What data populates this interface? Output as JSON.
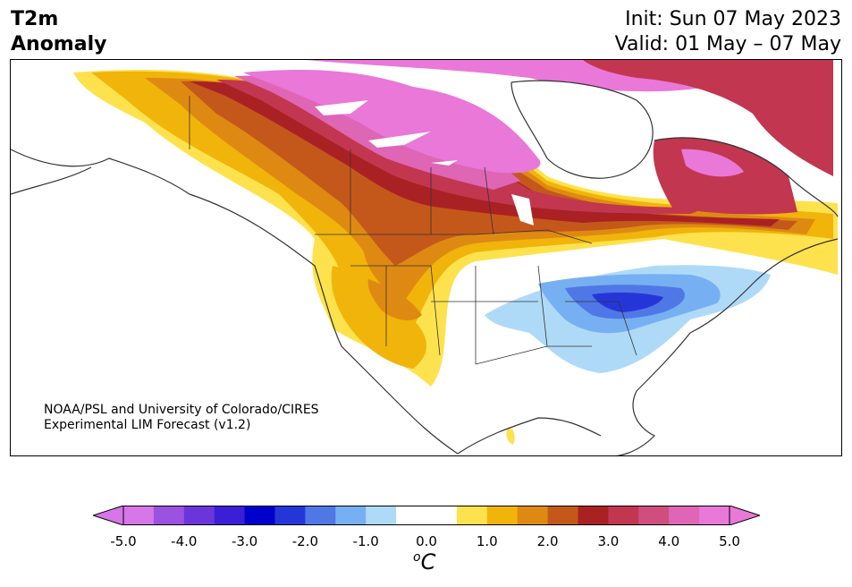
{
  "title": {
    "left_line1": "T2m",
    "left_line2": "Anomaly",
    "right_line1": "Init: Sun 07 May 2023",
    "right_line2": "Valid: 01 May – 07 May"
  },
  "credit": {
    "line1": "NOAA/PSL and University of Colorado/CIRES",
    "line2": "Experimental LIM Forecast (v1.2)"
  },
  "colorbar": {
    "unit_sup": "o",
    "unit_text": "C",
    "ticks": [
      "-5.0",
      "-4.0",
      "-3.0",
      "-2.0",
      "-1.0",
      "0.0",
      "1.0",
      "2.0",
      "3.0",
      "4.0",
      "5.0"
    ],
    "colors": [
      "#d676e8",
      "#9b52e0",
      "#6a36dc",
      "#3a1fd6",
      "#0000cc",
      "#2536d9",
      "#4f78e6",
      "#77b0f2",
      "#aedaf8",
      "#ffffff",
      "#ffffff",
      "#fde24e",
      "#f1b40a",
      "#de8a12",
      "#c4581b",
      "#aa2124",
      "#c23650",
      "#cf4e7e",
      "#de66b4",
      "#e978d8"
    ],
    "min_color": "#d676e8",
    "max_color": "#e978d8"
  }
}
